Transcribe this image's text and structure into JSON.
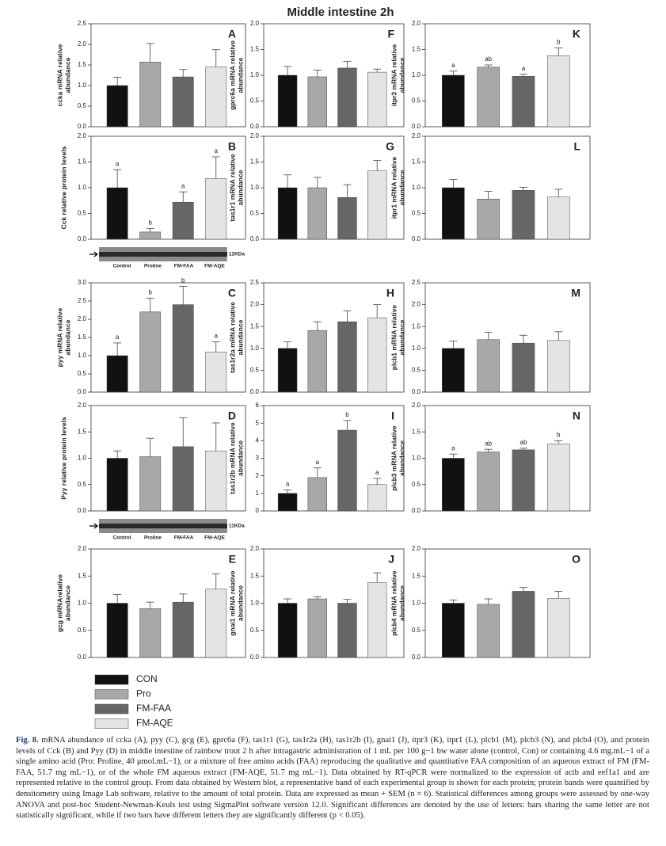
{
  "title": "Middle intestine 2h",
  "groups": [
    {
      "name": "CON",
      "color": "#111111"
    },
    {
      "name": "Pro",
      "color": "#a8a8a8"
    },
    {
      "name": "FM-FAA",
      "color": "#666666"
    },
    {
      "name": "FM-AQE",
      "color": "#e4e4e4"
    }
  ],
  "chart_data": [
    {
      "type": "bar",
      "panel": "A",
      "ylabel": [
        "ccka mRNA relative",
        "abundance"
      ],
      "ylim": [
        0,
        2.5
      ],
      "yticks": [
        {
          "value": 0,
          "label": "0.0"
        },
        0.5,
        {
          "value": 1,
          "label": "1.0"
        },
        1.5,
        {
          "value": 2,
          "label": "2.0"
        },
        2.5
      ],
      "values": [
        1.0,
        1.57,
        1.21,
        1.45
      ],
      "errors": [
        0.2,
        0.45,
        0.18,
        0.42
      ]
    },
    {
      "type": "bar",
      "panel": "B",
      "ylabel": [
        "Cck relative protein levels"
      ],
      "ylim": [
        0,
        2
      ],
      "yticks": [
        {
          "value": 0,
          "label": "0.0"
        },
        0.5,
        {
          "value": 1,
          "label": "1.0"
        },
        1.5,
        {
          "value": 2,
          "label": "2.0"
        }
      ],
      "values": [
        1.0,
        0.14,
        0.72,
        1.18
      ],
      "errors": [
        0.35,
        0.07,
        0.2,
        0.42
      ],
      "letters": [
        "a",
        "b",
        "a",
        "a"
      ],
      "blot": {
        "lanes": [
          "Control",
          "Proline",
          "FM-FAA",
          "FM-AQE"
        ],
        "size": "12KDa"
      }
    },
    {
      "type": "bar",
      "panel": "C",
      "ylabel": [
        "pyy mRNA relative",
        "abundance"
      ],
      "ylim": [
        0,
        3
      ],
      "yticks": [
        {
          "value": 0,
          "label": "0.0"
        },
        0.5,
        {
          "value": 1,
          "label": "1.0"
        },
        1.5,
        {
          "value": 2,
          "label": "2.0"
        },
        2.5,
        {
          "value": 3,
          "label": "3.0"
        }
      ],
      "values": [
        1.0,
        2.2,
        2.4,
        1.1
      ],
      "errors": [
        0.35,
        0.38,
        0.5,
        0.28
      ],
      "letters": [
        "a",
        "b",
        "b",
        "a"
      ]
    },
    {
      "type": "bar",
      "panel": "D",
      "ylabel": [
        "Pyy relative protein levels"
      ],
      "ylim": [
        0,
        2
      ],
      "yticks": [
        {
          "value": 0,
          "label": "0.0"
        },
        0.5,
        {
          "value": 1,
          "label": "1.0"
        },
        1.5,
        {
          "value": 2,
          "label": "2.0"
        }
      ],
      "values": [
        1.0,
        1.03,
        1.22,
        1.14
      ],
      "errors": [
        0.14,
        0.35,
        0.55,
        0.53
      ],
      "blot": {
        "lanes": [
          "Control",
          "Proline",
          "FM-FAA",
          "FM-AQE"
        ],
        "size": "11KDa"
      }
    },
    {
      "type": "bar",
      "panel": "E",
      "ylabel": [
        "gcg mRNArelative",
        "abundance"
      ],
      "ylim": [
        0,
        2
      ],
      "yticks": [
        {
          "value": 0,
          "label": "0.0"
        },
        0.5,
        {
          "value": 1,
          "label": "1.0"
        },
        1.5,
        {
          "value": 2,
          "label": "2.0"
        }
      ],
      "values": [
        1.0,
        0.9,
        1.02,
        1.26
      ],
      "errors": [
        0.16,
        0.12,
        0.15,
        0.28
      ]
    },
    {
      "type": "bar",
      "panel": "F",
      "ylabel": [
        "gprc6a mRNA relative",
        "abundance"
      ],
      "ylim": [
        0,
        2
      ],
      "yticks": [
        {
          "value": 0,
          "label": "0.0"
        },
        0.5,
        {
          "value": 1,
          "label": "1.0"
        },
        1.5,
        {
          "value": 2,
          "label": "2.0"
        }
      ],
      "values": [
        1.0,
        0.97,
        1.14,
        1.06
      ],
      "errors": [
        0.17,
        0.13,
        0.13,
        0.06
      ]
    },
    {
      "type": "bar",
      "panel": "G",
      "ylabel": [
        "tas1r1 mRNA relative",
        "abundance"
      ],
      "ylim": [
        0,
        2
      ],
      "yticks": [
        {
          "value": 0,
          "label": "0.0"
        },
        0.5,
        {
          "value": 1,
          "label": "1.0"
        },
        1.5,
        {
          "value": 2,
          "label": "2.0"
        }
      ],
      "values": [
        1.0,
        1.0,
        0.81,
        1.33
      ],
      "errors": [
        0.25,
        0.2,
        0.25,
        0.2
      ]
    },
    {
      "type": "bar",
      "panel": "H",
      "ylabel": [
        "tas1r2a mRNA relative",
        "abundance"
      ],
      "ylim": [
        0,
        2.5
      ],
      "yticks": [
        {
          "value": 0,
          "label": "0.0"
        },
        0.5,
        {
          "value": 1,
          "label": "1.0"
        },
        1.5,
        {
          "value": 2,
          "label": "2.0"
        },
        2.5
      ],
      "values": [
        1.0,
        1.41,
        1.61,
        1.7
      ],
      "errors": [
        0.15,
        0.2,
        0.25,
        0.3
      ]
    },
    {
      "type": "bar",
      "panel": "I",
      "ylabel": [
        "tas1r2b mRNA relative",
        "abundance"
      ],
      "ylim": [
        0,
        6
      ],
      "yticks": [
        0,
        1,
        2,
        3,
        4,
        5,
        6
      ],
      "values": [
        1.0,
        1.9,
        4.6,
        1.5
      ],
      "errors": [
        0.2,
        0.55,
        0.55,
        0.35
      ],
      "letters": [
        "a",
        "a",
        "b",
        "a"
      ]
    },
    {
      "type": "bar",
      "panel": "J",
      "ylabel": [
        "gnai1 mRNA relative",
        "abundance"
      ],
      "ylim": [
        0,
        2
      ],
      "yticks": [
        {
          "value": 0,
          "label": "0.0"
        },
        0.5,
        {
          "value": 1,
          "label": "1.0"
        },
        1.5,
        {
          "value": 2,
          "label": "2.0"
        }
      ],
      "values": [
        1.0,
        1.08,
        1.0,
        1.38
      ],
      "errors": [
        0.08,
        0.04,
        0.07,
        0.18
      ]
    },
    {
      "type": "bar",
      "panel": "K",
      "ylabel": [
        "itpr3 mRNA relative",
        "abundance"
      ],
      "ylim": [
        0,
        2
      ],
      "yticks": [
        {
          "value": 0,
          "label": "0.0"
        },
        0.5,
        {
          "value": 1,
          "label": "1.0"
        },
        1.5,
        {
          "value": 2,
          "label": "2.0"
        }
      ],
      "values": [
        1.0,
        1.16,
        0.98,
        1.38
      ],
      "errors": [
        0.08,
        0.04,
        0.04,
        0.15
      ],
      "letters": [
        "a",
        "ab",
        "a",
        "b"
      ]
    },
    {
      "type": "bar",
      "panel": "L",
      "ylabel": [
        "itpr1 mRNA relative",
        "abundance"
      ],
      "ylim": [
        0,
        2
      ],
      "yticks": [
        {
          "value": 0,
          "label": "0.0"
        },
        0.5,
        {
          "value": 1,
          "label": "1.0"
        },
        1.5,
        {
          "value": 2,
          "label": "2.0"
        }
      ],
      "values": [
        1.0,
        0.78,
        0.95,
        0.82
      ],
      "errors": [
        0.16,
        0.15,
        0.06,
        0.15
      ]
    },
    {
      "type": "bar",
      "panel": "M",
      "ylabel": [
        "plcb1 mRNA relative",
        "abundance"
      ],
      "ylim": [
        0,
        2.5
      ],
      "yticks": [
        {
          "value": 0,
          "label": "0.0"
        },
        0.5,
        {
          "value": 1,
          "label": "1.0"
        },
        1.5,
        {
          "value": 2,
          "label": "2.0"
        },
        2.5
      ],
      "values": [
        1.0,
        1.2,
        1.12,
        1.18
      ],
      "errors": [
        0.17,
        0.17,
        0.18,
        0.2
      ]
    },
    {
      "type": "bar",
      "panel": "N",
      "ylabel": [
        "plcb3 mRNA relative",
        "abundance"
      ],
      "ylim": [
        0,
        2
      ],
      "yticks": [
        {
          "value": 0,
          "label": "0.0"
        },
        0.5,
        {
          "value": 1,
          "label": "1.0"
        },
        1.5,
        {
          "value": 2,
          "label": "2.0"
        }
      ],
      "values": [
        1.0,
        1.12,
        1.16,
        1.27
      ],
      "errors": [
        0.08,
        0.05,
        0.03,
        0.06
      ],
      "letters": [
        "a",
        "ab",
        "ab",
        "b"
      ]
    },
    {
      "type": "bar",
      "panel": "O",
      "ylabel": [
        "plcb4 mRNA relative",
        "abundance"
      ],
      "ylim": [
        0,
        2
      ],
      "yticks": [
        {
          "value": 0,
          "label": "0.0"
        },
        0.5,
        {
          "value": 1,
          "label": "1.0"
        },
        1.5,
        {
          "value": 2,
          "label": "2.0"
        }
      ],
      "values": [
        1.0,
        0.98,
        1.22,
        1.09
      ],
      "errors": [
        0.06,
        0.1,
        0.07,
        0.13
      ]
    }
  ],
  "caption_label": "Fig. 8.",
  "caption": "mRNA abundance of ccka (A), pyy (C), gcg (E), gprc6a (F), tas1r1 (G), tas1r2a (H), tas1r2b (I), gnai1 (J), itpr3 (K), itpr1 (L), plcb1 (M), plcb3 (N), and plcb4 (O), and protein levels of Cck (B) and Pyy (D) in middle intestine of rainbow trout 2 h after intragastric administration of 1 mL per 100 g−1 bw water alone (control, Con) or containing 4.6 mg.mL−1 of a single amino acid (Pro: Proline, 40 μmol.mL−1), or a mixture of free amino acids (FAA) reproducing the qualitative and quantitative FAA composition of an aqueous extract of FM (FM-FAA, 51.7 mg mL−1), or of the whole FM aqueous extract (FM-AQE, 51.7 mg mL−1). Data obtained by RT-qPCR were normalized to the expression of actb and eef1a1 and are represented relative to the control group. From data obtained by Western blot, a representative band of each experimental group is shown for each protein; protein bands were quantified by densitometry using Image Lab software, relative to the amount of total protein. Data are expressed as mean + SEM (n = 6). Statistical differences among groups were assessed by one-way ANOVA and post-hoc Student-Newman-Keuls test using SigmaPlot software version 12.0. Significant differences are denoted by the use of letters: bars sharing the same letter are not statistically significant, while if two bars have different letters they are significantly different (p < 0.05)."
}
